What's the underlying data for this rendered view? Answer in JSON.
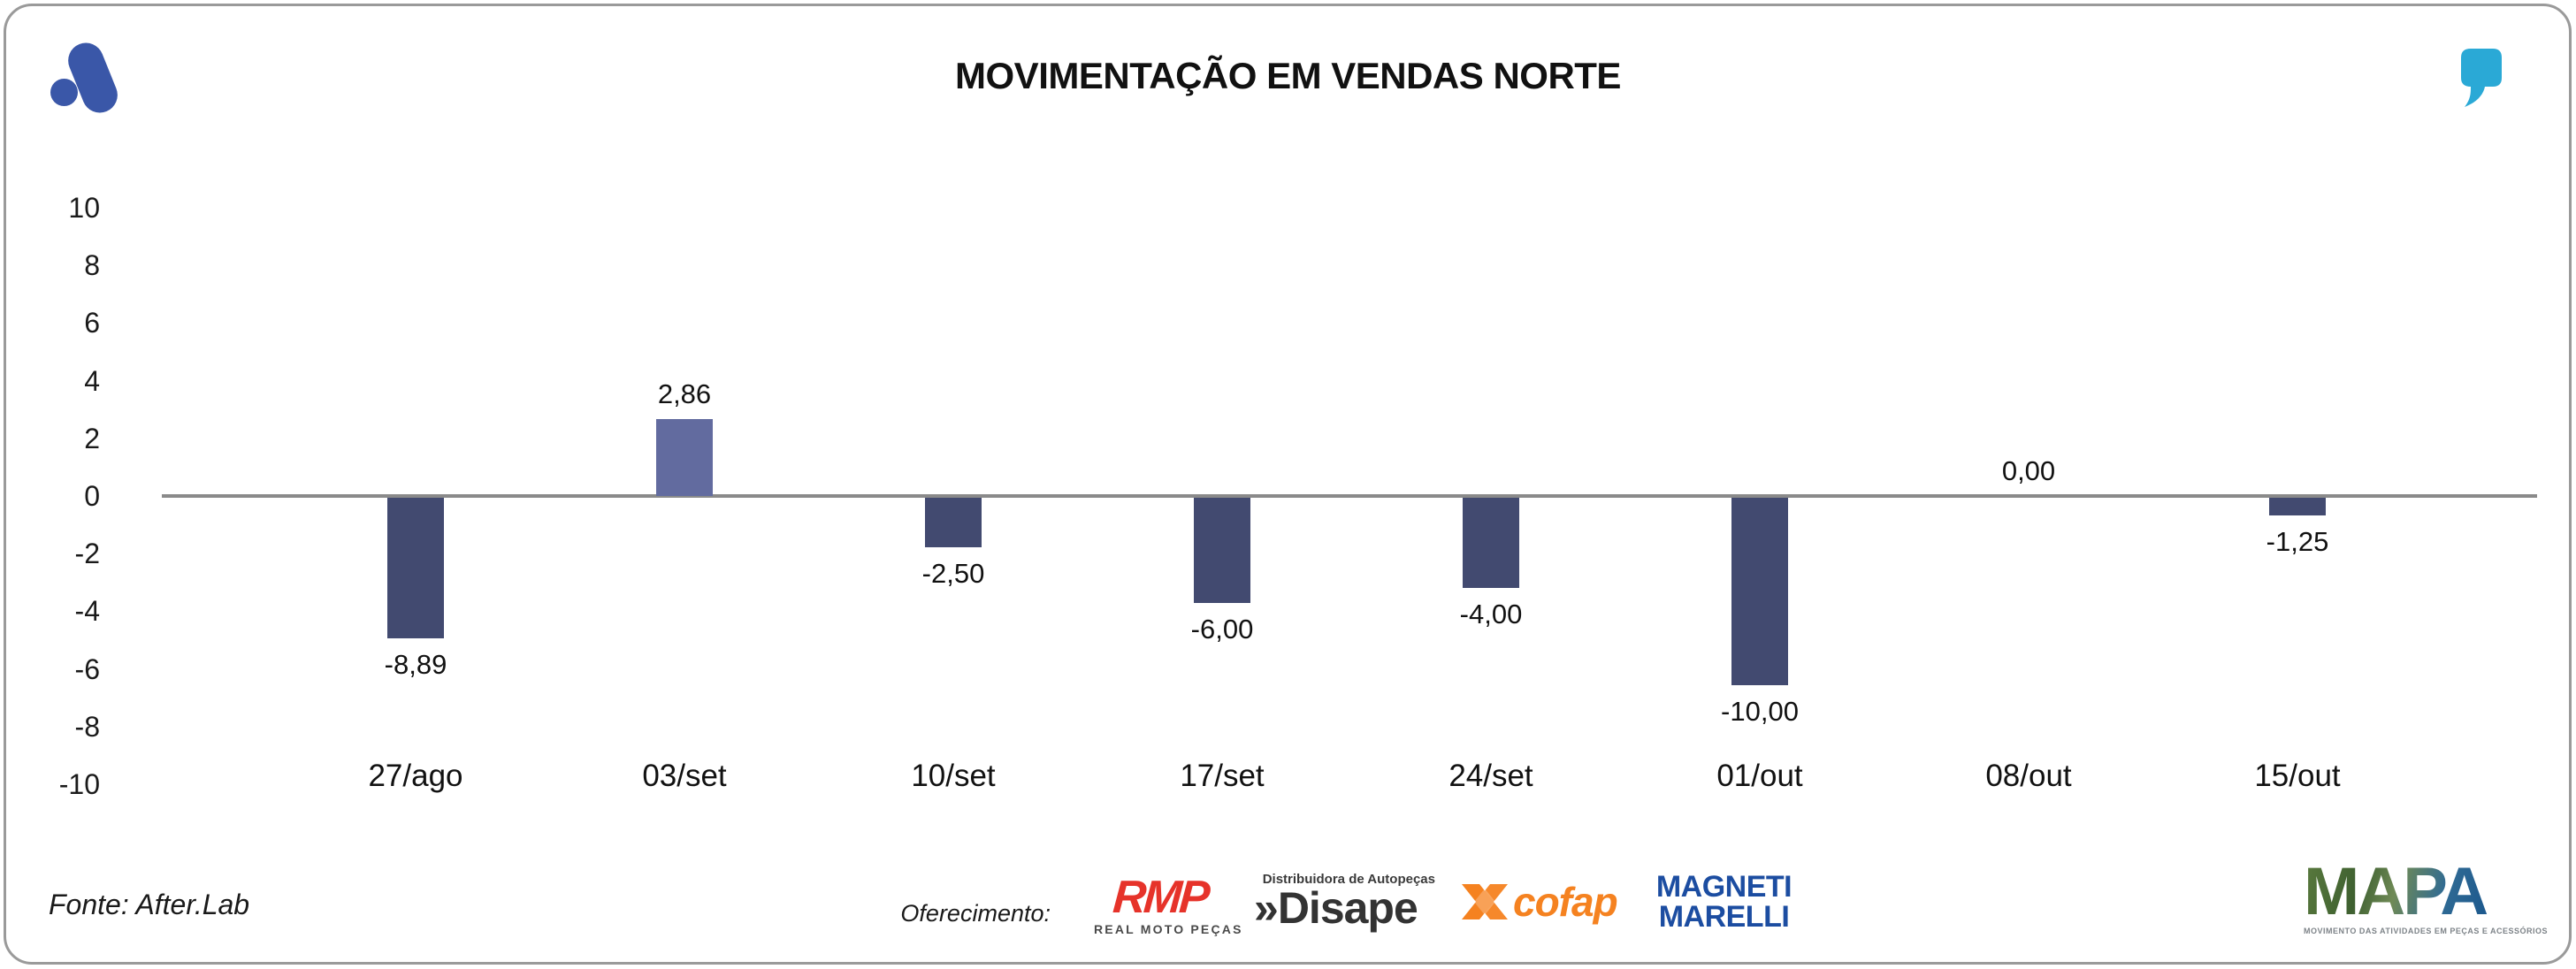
{
  "header": {
    "title": "MOVIMENTAÇÃO EM VENDAS NORTE"
  },
  "footer": {
    "source": "Fonte: After.Lab",
    "sponsorship_label": "Oferecimento:",
    "sponsors": {
      "rmp": {
        "name": "RMP",
        "subtitle": "REAL MOTO PEÇAS",
        "color": "#e6332a"
      },
      "disape": {
        "chevrons": "»",
        "name": "Disape",
        "tagline": "Distribuidora de Autopeças",
        "color": "#333333"
      },
      "cofap": {
        "name": "cofap",
        "color": "#f58220"
      },
      "magneti_marelli": {
        "line1": "MAGNETI",
        "line2": "MARELLI",
        "color": "#1c4da1"
      },
      "mapa": {
        "name": "MAPA",
        "subtitle": "MOVIMENTO DAS ATIVIDADES EM PEÇAS E ACESSÓRIOS"
      }
    }
  },
  "chart_data": {
    "type": "bar",
    "title": "MOVIMENTAÇÃO EM VENDAS NORTE",
    "categories": [
      "27/ago",
      "03/set",
      "10/set",
      "17/set",
      "24/set",
      "01/out",
      "08/out",
      "15/out"
    ],
    "values": [
      -8.89,
      2.86,
      -2.5,
      -6.0,
      -4.0,
      -10.0,
      0.0,
      -1.25
    ],
    "value_labels": [
      "-8,89",
      "2,86",
      "-2,50",
      "-6,00",
      "-4,00",
      "-10,00",
      "0,00",
      "-1,25"
    ],
    "bar_rendered_units": [
      -4.88,
      2.67,
      -1.72,
      -3.65,
      -3.13,
      -6.5,
      0,
      -0.61
    ],
    "y_ticks": [
      10,
      8,
      6,
      4,
      2,
      0,
      -2,
      -4,
      -6,
      -8,
      -10
    ],
    "ylim": [
      -10,
      10
    ],
    "xlabel": "",
    "ylabel": "",
    "grid": false,
    "legend": false,
    "baseline_only": true,
    "colors": {
      "bar_negative": "#424a70",
      "bar_positive": "#626b9f",
      "axis_line": "#8a8a8a"
    }
  }
}
